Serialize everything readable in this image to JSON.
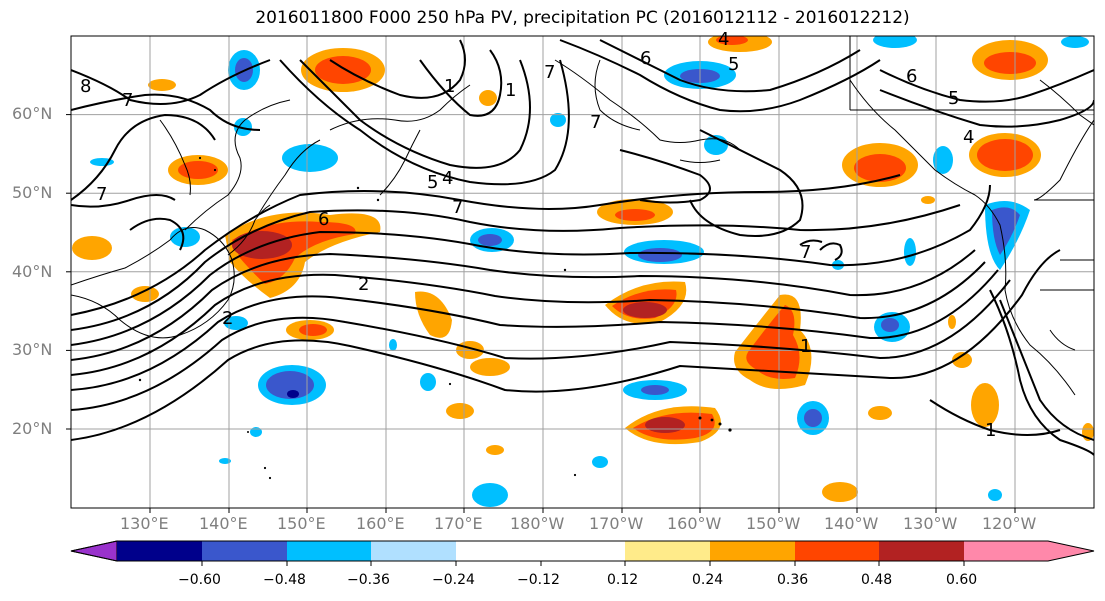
{
  "title": "2016011800 F000 250 hPa PV, precipitation PC (2016012112 - 2016012212)",
  "lat_labels": [
    "60°N",
    "50°N",
    "40°N",
    "30°N",
    "20°N"
  ],
  "lon_labels": [
    "130°E",
    "140°E",
    "150°E",
    "160°E",
    "170°E",
    "180°W",
    "170°W",
    "160°W",
    "150°W",
    "140°W",
    "130°W",
    "120°W"
  ],
  "colorbar": {
    "ticks": [
      "−0.60",
      "−0.48",
      "−0.36",
      "−0.24",
      "−0.12",
      "0.12",
      "0.24",
      "0.36",
      "0.48",
      "0.60"
    ],
    "colors": [
      "#9932cc",
      "#00008b",
      "#3a57cc",
      "#00bfff",
      "#b0e0ff",
      "#ffffff",
      "#ffeb8a",
      "#ffa500",
      "#ff4500",
      "#b22222",
      "#ff88aa"
    ]
  },
  "contour_labels": [
    "8",
    "7",
    "7",
    "5",
    "4",
    "7",
    "6",
    "1",
    "1",
    "2",
    "7",
    "6",
    "5",
    "4",
    "7",
    "6",
    "5",
    "4",
    "7",
    "2",
    "1",
    "1"
  ],
  "colors": {
    "contour": "#000000",
    "grid": "#a0a0a0",
    "coast": "#000000"
  }
}
